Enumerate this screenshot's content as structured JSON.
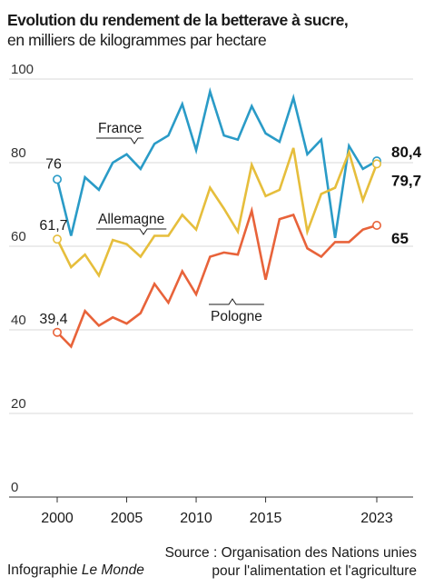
{
  "header": {
    "title": "Evolution du rendement de la betterave à sucre,",
    "subtitle": "en milliers de kilogrammes par hectare"
  },
  "footer": {
    "credit_prefix": "Infographie ",
    "credit_brand": "Le Monde",
    "source_line1": "Source : Organisation des Nations unies",
    "source_line2": "pour l'alimentation et l'agriculture"
  },
  "chart_data": {
    "type": "line",
    "x": [
      2000,
      2001,
      2002,
      2003,
      2004,
      2005,
      2006,
      2007,
      2008,
      2009,
      2010,
      2011,
      2012,
      2013,
      2014,
      2015,
      2016,
      2017,
      2018,
      2019,
      2020,
      2021,
      2022,
      2023
    ],
    "x_ticks": [
      "2000",
      "2005",
      "2010",
      "2015",
      "2023"
    ],
    "x_tick_values": [
      2000,
      2005,
      2010,
      2015,
      2023
    ],
    "y_ticks": [
      "0",
      "20",
      "40",
      "60",
      "80",
      "100"
    ],
    "ylim": [
      0,
      100
    ],
    "xlim": [
      2000,
      2023
    ],
    "grid": true,
    "series": [
      {
        "name": "France",
        "color": "#2a9bc7",
        "values": [
          76,
          62.5,
          76.5,
          73.5,
          80,
          82,
          78.5,
          84.5,
          86.5,
          94,
          83,
          97,
          86.5,
          85.5,
          93.5,
          87,
          85,
          95.5,
          82,
          85.5,
          62,
          84,
          78.5,
          80.4
        ],
        "start_label": "76",
        "end_label": "80,4"
      },
      {
        "name": "Allemagne",
        "color": "#e6be3c",
        "values": [
          61.7,
          55,
          58,
          53,
          61.5,
          60.5,
          57.5,
          62.5,
          62.5,
          67.5,
          64,
          74,
          69,
          63.5,
          79.5,
          72,
          73.5,
          83.5,
          63.5,
          72.5,
          74,
          82.5,
          71,
          79.7
        ],
        "start_label": "61,7",
        "end_label": "79,7"
      },
      {
        "name": "Pologne",
        "color": "#e8633a",
        "values": [
          39.4,
          36,
          44.5,
          41,
          43,
          41.5,
          44,
          51,
          46.5,
          54,
          48.5,
          57.5,
          58.5,
          58,
          68.5,
          52,
          66.5,
          67.5,
          59.5,
          57.5,
          61,
          61,
          64,
          65
        ],
        "start_label": "39,4",
        "end_label": "65"
      }
    ]
  }
}
